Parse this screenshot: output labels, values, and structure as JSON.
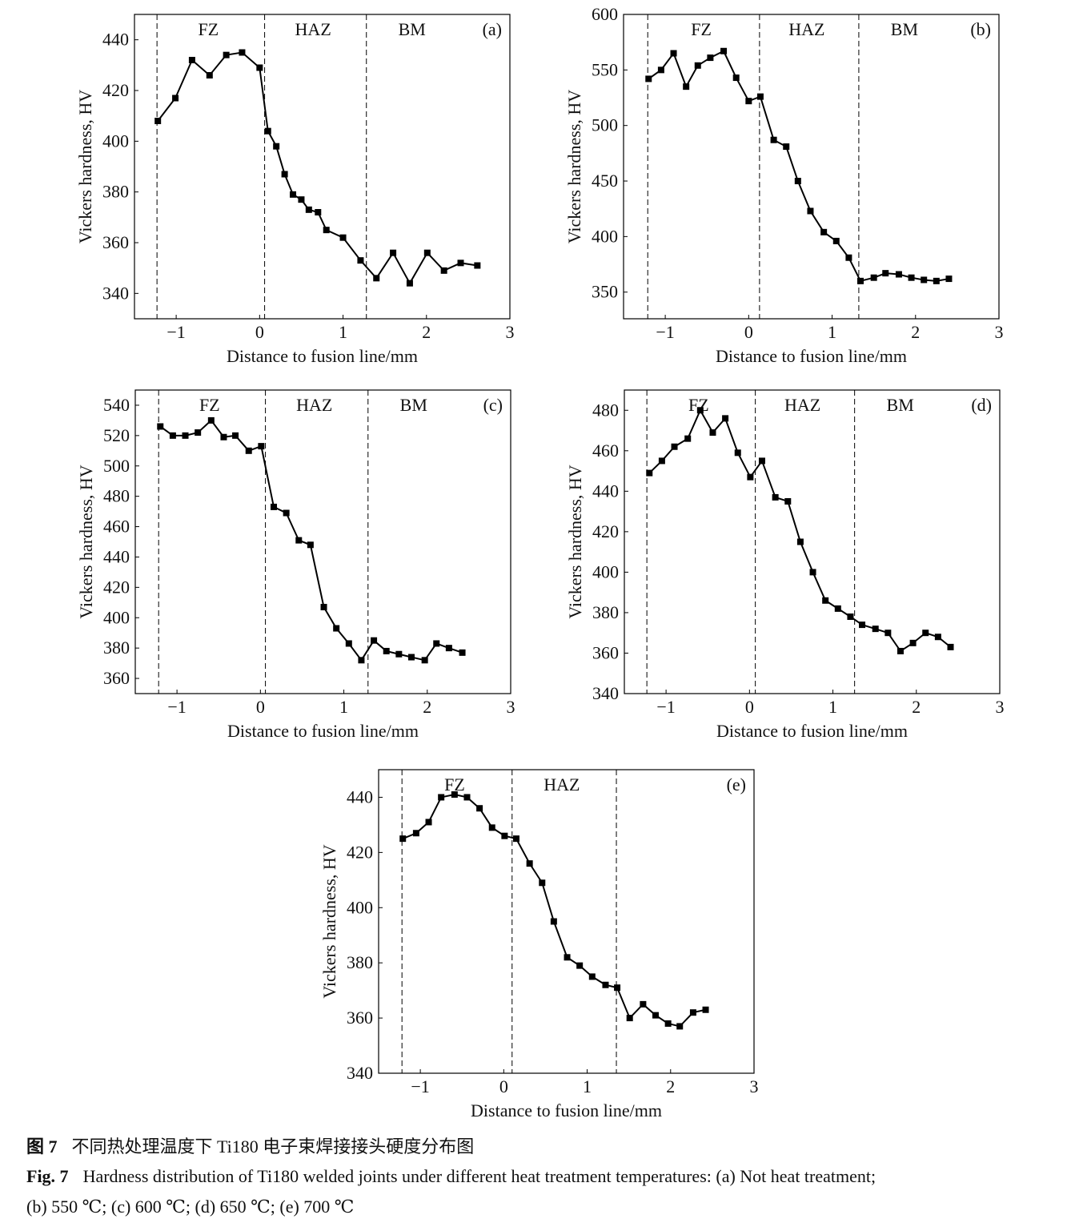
{
  "chart_data": [
    {
      "type": "line",
      "panel": "(a)",
      "xlabel": "Distance to fusion line/mm",
      "ylabel": "Vickers hardness, HV",
      "xlim": [
        -1.5,
        3
      ],
      "ylim": [
        330,
        450
      ],
      "xticks": [
        "−1",
        "0",
        "1",
        "2",
        "3"
      ],
      "yticks": [
        340,
        360,
        380,
        400,
        420,
        440
      ],
      "zone_boundaries": [
        -1.23,
        0.06,
        1.28
      ],
      "zones": [
        "FZ",
        "HAZ",
        "BM"
      ],
      "x": [
        -1.22,
        -1.01,
        -0.81,
        -0.6,
        -0.4,
        -0.21,
        0.0,
        0.1,
        0.2,
        0.3,
        0.4,
        0.5,
        0.59,
        0.7,
        0.8,
        1.0,
        1.21,
        1.4,
        1.6,
        1.8,
        2.01,
        2.21,
        2.41,
        2.61
      ],
      "y": [
        408,
        417,
        432,
        426,
        434,
        435,
        429,
        404,
        398,
        387,
        379,
        377,
        373,
        372,
        365,
        362,
        353,
        346,
        356,
        344,
        356,
        349,
        352,
        351
      ]
    },
    {
      "type": "line",
      "panel": "(b)",
      "xlabel": "Distance to fusion line/mm",
      "ylabel": "Vickers hardness, HV",
      "xlim": [
        -1.5,
        3
      ],
      "ylim": [
        326,
        600
      ],
      "xticks": [
        "−1",
        "0",
        "1",
        "2",
        "3"
      ],
      "yticks": [
        350,
        400,
        450,
        500,
        550,
        600
      ],
      "zone_boundaries": [
        -1.21,
        0.13,
        1.32
      ],
      "zones": [
        "FZ",
        "HAZ",
        "BM"
      ],
      "x": [
        -1.2,
        -1.05,
        -0.9,
        -0.75,
        -0.61,
        -0.46,
        -0.3,
        -0.15,
        0.0,
        0.14,
        0.3,
        0.45,
        0.59,
        0.74,
        0.9,
        1.05,
        1.2,
        1.34,
        1.5,
        1.64,
        1.8,
        1.95,
        2.1,
        2.25,
        2.4
      ],
      "y": [
        542,
        550,
        565,
        535,
        554,
        561,
        567,
        543,
        522,
        526,
        487,
        481,
        450,
        423,
        404,
        396,
        381,
        360,
        363,
        367,
        366,
        363,
        361,
        360,
        362
      ]
    },
    {
      "type": "line",
      "panel": "(c)",
      "xlabel": "Distance to fusion line/mm",
      "ylabel": "Vickers hardness, HV",
      "xlim": [
        -1.5,
        3
      ],
      "ylim": [
        350,
        550
      ],
      "xticks": [
        "−1",
        "0",
        "1",
        "2",
        "3"
      ],
      "yticks": [
        360,
        380,
        400,
        420,
        440,
        460,
        480,
        500,
        520,
        540
      ],
      "zone_boundaries": [
        -1.22,
        0.06,
        1.29
      ],
      "zones": [
        "FZ",
        "HAZ",
        "BM"
      ],
      "x": [
        -1.2,
        -1.05,
        -0.9,
        -0.75,
        -0.59,
        -0.44,
        -0.3,
        -0.14,
        0.01,
        0.16,
        0.31,
        0.46,
        0.6,
        0.76,
        0.91,
        1.06,
        1.21,
        1.36,
        1.51,
        1.66,
        1.81,
        1.97,
        2.11,
        2.26,
        2.42
      ],
      "y": [
        526,
        520,
        520,
        522,
        530,
        519,
        520,
        510,
        513,
        473,
        469,
        451,
        448,
        407,
        393,
        383,
        372,
        385,
        378,
        376,
        374,
        372,
        383,
        380,
        377
      ]
    },
    {
      "type": "line",
      "panel": "(d)",
      "xlabel": "Distance to fusion line/mm",
      "ylabel": "Vickers hardness, HV",
      "xlim": [
        -1.5,
        3
      ],
      "ylim": [
        340,
        490
      ],
      "xticks": [
        "−1",
        "0",
        "1",
        "2",
        "3"
      ],
      "yticks": [
        340,
        360,
        380,
        400,
        420,
        440,
        460,
        480
      ],
      "zone_boundaries": [
        -1.23,
        0.07,
        1.26
      ],
      "zones": [
        "FZ",
        "HAZ",
        "BM"
      ],
      "x": [
        -1.2,
        -1.05,
        -0.9,
        -0.74,
        -0.59,
        -0.44,
        -0.29,
        -0.14,
        0.01,
        0.15,
        0.31,
        0.46,
        0.61,
        0.76,
        0.91,
        1.06,
        1.21,
        1.35,
        1.51,
        1.66,
        1.81,
        1.96,
        2.11,
        2.26,
        2.41
      ],
      "y": [
        449,
        455,
        462,
        466,
        480,
        469,
        476,
        459,
        447,
        455,
        437,
        435,
        415,
        400,
        386,
        382,
        378,
        374,
        372,
        370,
        361,
        365,
        370,
        368,
        363
      ]
    },
    {
      "type": "line",
      "panel": "(e)",
      "xlabel": "Distance to fusion line/mm",
      "ylabel": "Vickers hardness, HV",
      "xlim": [
        -1.5,
        3
      ],
      "ylim": [
        340,
        450
      ],
      "xticks": [
        "−1",
        "0",
        "1",
        "2",
        "3"
      ],
      "yticks": [
        340,
        360,
        380,
        400,
        420,
        440
      ],
      "zone_boundaries": [
        -1.22,
        0.1,
        1.35
      ],
      "zones": [
        "FZ",
        "HAZ"
      ],
      "x": [
        -1.21,
        -1.05,
        -0.9,
        -0.75,
        -0.59,
        -0.44,
        -0.29,
        -0.14,
        0.01,
        0.15,
        0.31,
        0.46,
        0.6,
        0.76,
        0.91,
        1.06,
        1.22,
        1.36,
        1.51,
        1.67,
        1.82,
        1.97,
        2.11,
        2.27,
        2.42
      ],
      "y": [
        425,
        427,
        431,
        440,
        441,
        440,
        436,
        429,
        426,
        425,
        416,
        409,
        395,
        382,
        379,
        375,
        372,
        371,
        360,
        365,
        361,
        358,
        357,
        362,
        363
      ]
    }
  ],
  "caption": {
    "cn_label": "图 7",
    "cn_text": "不同热处理温度下 Ti180 电子束焊接接头硬度分布图",
    "en_label": "Fig. 7",
    "en_text_line1": "Hardness distribution of Ti180 welded joints under different heat treatment temperatures: (a) Not heat treatment;",
    "en_text_line2": "(b) 550 ℃; (c) 600 ℃; (d) 650 ℃; (e) 700 ℃"
  },
  "colors": {
    "line": "#000000",
    "marker": "#000000",
    "background": "#ffffff"
  }
}
